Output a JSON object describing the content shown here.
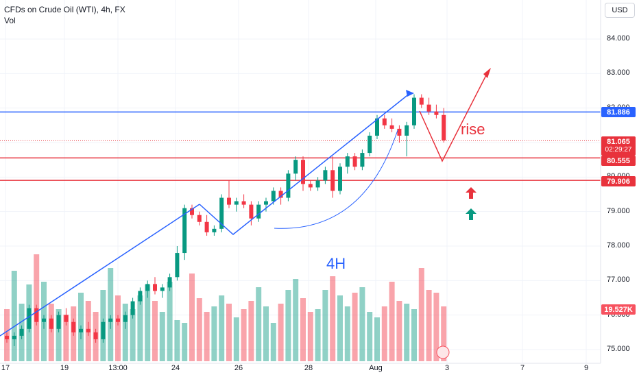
{
  "header": {
    "title": "CFDs on Crude Oil (WTI), 4h, FX",
    "sub": "Vol",
    "currency": "USD"
  },
  "price_tags": [
    {
      "value": "81.886",
      "color": "#2962ff"
    },
    {
      "value": "81.065",
      "countdown": "02:29:27",
      "color": "#e8323c"
    },
    {
      "value": "80.555",
      "color": "#e8323c"
    },
    {
      "value": "79.906",
      "color": "#e8323c"
    },
    {
      "value": "19.527K",
      "color": "#f7525f"
    }
  ],
  "annotations": {
    "rise": "rise",
    "timeframe": "4H"
  },
  "chart_data": {
    "type": "candlestick",
    "title": "CFDs on Crude Oil (WTI), 4h, FX",
    "y_ticks": [
      "84.000",
      "83.000",
      "82.000",
      "81.000",
      "80.000",
      "79.000",
      "78.000",
      "77.000",
      "76.000",
      "75.000"
    ],
    "y_range": [
      74.7,
      85.0
    ],
    "x_ticks": [
      "17",
      "19",
      "13:00",
      "24",
      "26",
      "28",
      "Aug",
      "3",
      "7",
      "9"
    ],
    "levels": [
      {
        "price": 81.886,
        "color": "#2962ff"
      },
      {
        "price": 80.555,
        "color": "#e8323c"
      },
      {
        "price": 79.906,
        "color": "#e8323c"
      }
    ],
    "last_price": 81.065,
    "volume_last": "19.527K",
    "candles": [
      [
        75.4,
        75.5,
        75.2,
        75.3
      ],
      [
        75.3,
        75.5,
        75.1,
        75.4
      ],
      [
        75.4,
        75.7,
        75.3,
        75.6
      ],
      [
        75.6,
        76.3,
        75.5,
        76.2
      ],
      [
        76.2,
        76.3,
        75.7,
        75.8
      ],
      [
        75.8,
        76.0,
        75.6,
        75.9
      ],
      [
        75.9,
        76.0,
        75.5,
        75.6
      ],
      [
        75.6,
        76.1,
        75.5,
        76.0
      ],
      [
        76.0,
        76.2,
        75.7,
        75.8
      ],
      [
        75.8,
        75.9,
        75.4,
        75.5
      ],
      [
        75.5,
        75.7,
        75.3,
        75.6
      ],
      [
        75.6,
        75.8,
        75.4,
        75.5
      ],
      [
        75.5,
        75.6,
        75.2,
        75.3
      ],
      [
        75.3,
        75.9,
        75.2,
        75.8
      ],
      [
        75.8,
        76.0,
        75.6,
        75.9
      ],
      [
        75.9,
        76.0,
        75.7,
        75.8
      ],
      [
        75.8,
        76.1,
        75.6,
        76.0
      ],
      [
        76.0,
        76.5,
        75.9,
        76.4
      ],
      [
        76.4,
        76.8,
        76.3,
        76.7
      ],
      [
        76.7,
        77.0,
        76.5,
        76.9
      ],
      [
        76.9,
        77.1,
        76.6,
        76.7
      ],
      [
        76.7,
        76.9,
        76.5,
        76.8
      ],
      [
        76.8,
        77.2,
        76.7,
        77.1
      ],
      [
        77.1,
        78.0,
        77.0,
        77.8
      ],
      [
        77.8,
        79.2,
        77.6,
        79.1
      ],
      [
        79.1,
        79.2,
        78.8,
        78.9
      ],
      [
        78.9,
        79.0,
        78.6,
        78.7
      ],
      [
        78.7,
        78.9,
        78.3,
        78.4
      ],
      [
        78.4,
        78.6,
        78.3,
        78.5
      ],
      [
        78.5,
        79.5,
        78.4,
        79.4
      ],
      [
        79.4,
        79.9,
        79.1,
        79.2
      ],
      [
        79.2,
        79.4,
        79.0,
        79.3
      ],
      [
        79.3,
        79.5,
        79.1,
        79.2
      ],
      [
        79.2,
        79.3,
        78.6,
        78.8
      ],
      [
        78.8,
        79.3,
        78.7,
        79.2
      ],
      [
        79.2,
        79.4,
        79.0,
        79.3
      ],
      [
        79.3,
        79.7,
        79.2,
        79.6
      ],
      [
        79.6,
        79.7,
        79.2,
        79.4
      ],
      [
        79.4,
        80.2,
        79.3,
        80.1
      ],
      [
        80.1,
        80.6,
        79.9,
        80.5
      ],
      [
        80.5,
        80.6,
        79.6,
        79.8
      ],
      [
        79.8,
        79.9,
        79.6,
        79.7
      ],
      [
        79.7,
        80.0,
        79.6,
        79.9
      ],
      [
        79.9,
        80.3,
        79.8,
        80.2
      ],
      [
        80.2,
        80.6,
        79.4,
        79.6
      ],
      [
        79.6,
        80.4,
        79.5,
        80.3
      ],
      [
        80.3,
        80.7,
        80.1,
        80.6
      ],
      [
        80.6,
        80.7,
        80.2,
        80.3
      ],
      [
        80.3,
        80.8,
        80.2,
        80.7
      ],
      [
        80.7,
        81.3,
        80.6,
        81.2
      ],
      [
        81.2,
        81.8,
        81.1,
        81.7
      ],
      [
        81.7,
        81.8,
        81.4,
        81.5
      ],
      [
        81.5,
        81.7,
        81.3,
        81.4
      ],
      [
        81.4,
        81.5,
        81.0,
        81.2
      ],
      [
        81.2,
        81.6,
        80.6,
        81.5
      ],
      [
        81.5,
        82.4,
        81.4,
        82.3
      ],
      [
        82.3,
        82.4,
        82.0,
        82.1
      ],
      [
        82.1,
        82.3,
        81.8,
        81.9
      ],
      [
        81.9,
        82.1,
        81.7,
        81.8
      ],
      [
        81.8,
        82.0,
        81.0,
        81.065
      ]
    ],
    "volumes": [
      1.9,
      3.3,
      2.1,
      2.8,
      3.9,
      2.9,
      2.1,
      1.9,
      1.7,
      2.0,
      2.5,
      2.2,
      1.8,
      2.6,
      3.4,
      2.4,
      2.1,
      1.9,
      2.4,
      2.8,
      2.2,
      1.8,
      2.9,
      1.5,
      1.4,
      3.2,
      2.3,
      1.8,
      2.0,
      2.4,
      2.1,
      1.6,
      1.9,
      2.2,
      2.7,
      2.0,
      1.4,
      2.1,
      2.6,
      3.0,
      2.3,
      1.8,
      1.9,
      2.6,
      3.1,
      2.4,
      2.0,
      2.5,
      2.7,
      1.8,
      1.6,
      2.0,
      2.9,
      2.2,
      2.1,
      1.9,
      3.4,
      2.6,
      2.5,
      2.0
    ]
  }
}
